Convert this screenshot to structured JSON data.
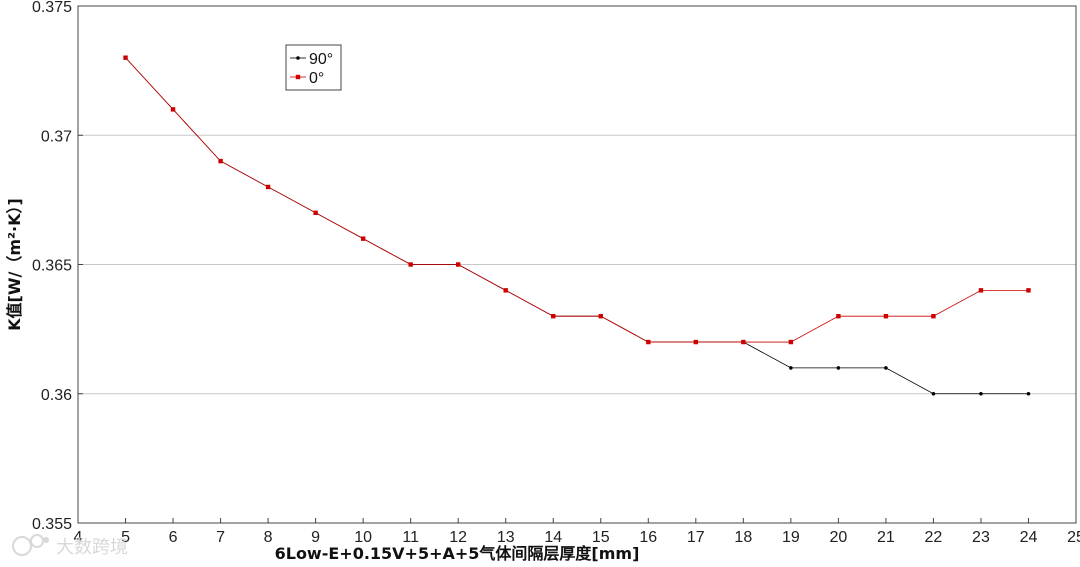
{
  "chart_data": {
    "type": "line",
    "xlabel": "6Low-E+0.15V+5+A+5气体间隔层厚度[mm]",
    "ylabel": "K值[W/（m²·K）]",
    "xlim": [
      4,
      25
    ],
    "ylim": [
      0.355,
      0.375
    ],
    "x_ticks": [
      "4",
      "5",
      "6",
      "7",
      "8",
      "9",
      "10",
      "11",
      "12",
      "13",
      "14",
      "15",
      "16",
      "17",
      "18",
      "19",
      "20",
      "21",
      "22",
      "23",
      "24",
      "25"
    ],
    "y_ticks": [
      "0.355",
      "0.36",
      "0.365",
      "0.37",
      "0.375"
    ],
    "grid": "horizontal",
    "legend_position": "top-left",
    "x": [
      5,
      6,
      7,
      8,
      9,
      10,
      11,
      12,
      13,
      14,
      15,
      16,
      17,
      18,
      19,
      20,
      21,
      22,
      23,
      24
    ],
    "series": [
      {
        "name": "90°",
        "color": "#000000",
        "values": [
          0.373,
          0.371,
          0.369,
          0.368,
          0.367,
          0.366,
          0.365,
          0.365,
          0.364,
          0.363,
          0.363,
          0.362,
          0.362,
          0.362,
          0.361,
          0.361,
          0.361,
          0.36,
          0.36,
          0.36
        ]
      },
      {
        "name": "0°",
        "color": "#cc0000",
        "values": [
          0.373,
          0.371,
          0.369,
          0.368,
          0.367,
          0.366,
          0.365,
          0.365,
          0.364,
          0.363,
          0.363,
          0.362,
          0.362,
          0.362,
          0.362,
          0.363,
          0.363,
          0.363,
          0.364,
          0.364
        ]
      }
    ]
  },
  "watermark": "大数跨境"
}
